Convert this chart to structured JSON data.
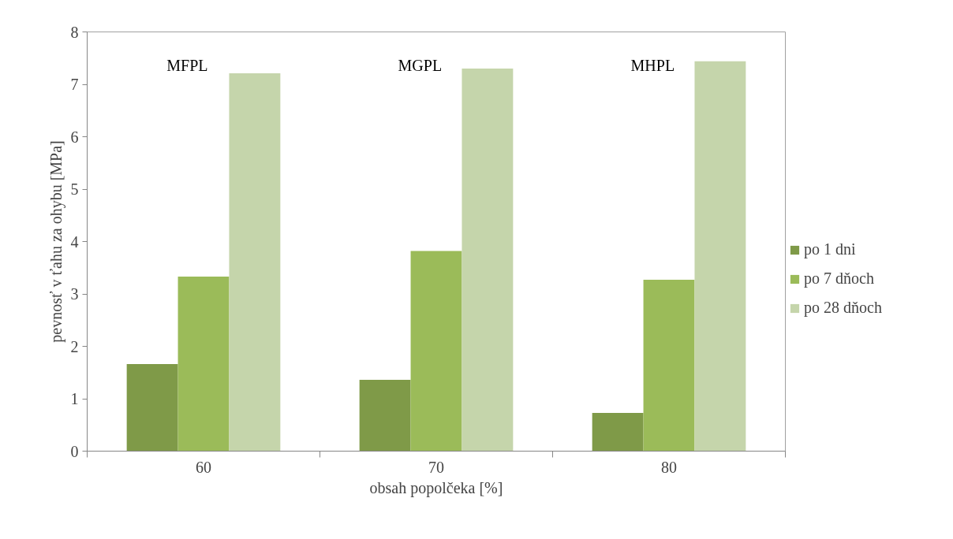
{
  "chart_data": {
    "type": "bar",
    "xlabel": "obsah popolčeka [%]",
    "ylabel": "pevnosť v ťahu za ohybu [MPa]",
    "categories": [
      "60",
      "70",
      "80"
    ],
    "series": [
      {
        "name": "po 1 dni",
        "color": "#7f9a48",
        "values": [
          1.66,
          1.36,
          0.73
        ]
      },
      {
        "name": "po 7 dňoch",
        "color": "#9bbb59",
        "values": [
          3.33,
          3.82,
          3.27
        ]
      },
      {
        "name": "po 28 dňoch",
        "color": "#c5d5ab",
        "values": [
          7.21,
          7.3,
          7.44
        ]
      }
    ],
    "annotations": [
      "MFPL",
      "MGPL",
      "MHPL"
    ],
    "ylim": [
      0,
      8
    ],
    "yticks": [
      0,
      1,
      2,
      3,
      4,
      5,
      6,
      7,
      8
    ],
    "grid": false,
    "legend": "right"
  }
}
